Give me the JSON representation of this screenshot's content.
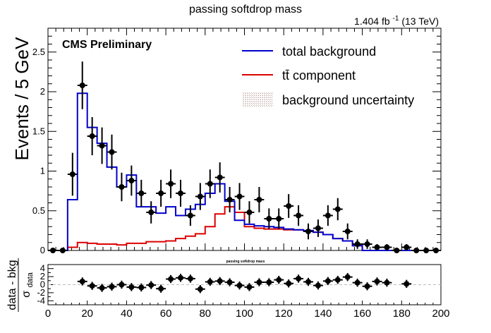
{
  "chart_data": [
    {
      "type": "line",
      "title": "passing softdrop mass",
      "lumi_label": "1.404 fb",
      "lumi_superscript": "-1",
      "lumi_energy": "(13 TeV)",
      "experiment_label": "CMS Preliminary",
      "xlabel": "",
      "ylabel": "Events / 5 GeV",
      "xlim": [
        0,
        200
      ],
      "ylim": [
        0,
        2.8
      ],
      "yticks": [
        "0",
        "0.5",
        "1",
        "1.5",
        "2",
        "2.5"
      ],
      "legend_position": "top-right",
      "legend": [
        {
          "label": "total background",
          "color": "#0000cc",
          "kind": "line"
        },
        {
          "label": "tt̄ component",
          "color": "#dd0000",
          "kind": "line"
        },
        {
          "label": "background uncertainty",
          "color": "#b09890",
          "kind": "hatch"
        }
      ],
      "bin_edges": [
        0,
        5,
        10,
        15,
        20,
        25,
        30,
        35,
        40,
        45,
        50,
        55,
        60,
        65,
        70,
        75,
        80,
        85,
        90,
        95,
        100,
        105,
        110,
        115,
        120,
        125,
        130,
        135,
        140,
        145,
        150,
        155,
        160,
        165,
        170,
        175,
        180,
        185,
        190,
        195,
        200
      ],
      "series": [
        {
          "name": "total background",
          "color": "#0000cc",
          "values": [
            0.0,
            0.0,
            0.64,
            1.98,
            1.55,
            1.35,
            1.05,
            0.8,
            0.95,
            0.55,
            0.55,
            0.47,
            0.55,
            0.44,
            0.52,
            0.58,
            0.72,
            0.84,
            0.62,
            0.38,
            0.33,
            0.31,
            0.3,
            0.29,
            0.27,
            0.26,
            0.25,
            0.23,
            0.2,
            0.15,
            0.12,
            0.06,
            0.0,
            0.0,
            0.0,
            0.0,
            0.0,
            0.0,
            0.0,
            0.0
          ]
        },
        {
          "name": "tt̄ component",
          "color": "#dd0000",
          "values": [
            0.0,
            0.0,
            0.04,
            0.1,
            0.09,
            0.08,
            0.08,
            0.07,
            0.09,
            0.09,
            0.11,
            0.11,
            0.12,
            0.15,
            0.18,
            0.21,
            0.3,
            0.46,
            0.55,
            0.48,
            0.3,
            0.28,
            0.27,
            0.27,
            0.26,
            0.26,
            0.25,
            0.23,
            0.2,
            0.15,
            0.12,
            0.06,
            0.0,
            0.0,
            0.0,
            0.0,
            0.0,
            0.0,
            0.0,
            0.0
          ]
        }
      ],
      "data_points": {
        "x": [
          2.5,
          7.5,
          12.5,
          17.5,
          22.5,
          27.5,
          32.5,
          37.5,
          42.5,
          47.5,
          52.5,
          57.5,
          62.5,
          67.5,
          72.5,
          77.5,
          82.5,
          87.5,
          92.5,
          97.5,
          102.5,
          107.5,
          112.5,
          117.5,
          122.5,
          127.5,
          132.5,
          137.5,
          142.5,
          147.5,
          152.5,
          157.5,
          162.5,
          167.5,
          172.5,
          177.5,
          182.5,
          187.5,
          192.5,
          197.5
        ],
        "y": [
          0.0,
          0.0,
          0.96,
          2.08,
          1.44,
          1.32,
          1.24,
          0.8,
          0.88,
          0.72,
          0.48,
          0.72,
          0.84,
          0.72,
          0.44,
          0.68,
          0.84,
          0.92,
          0.64,
          0.68,
          0.48,
          0.64,
          0.4,
          0.4,
          0.56,
          0.44,
          0.24,
          0.28,
          0.44,
          0.52,
          0.24,
          0.08,
          0.08,
          0.04,
          0.04,
          0.0,
          0.04,
          0.0,
          0.0,
          0.0
        ],
        "yerr": [
          0.0,
          0.0,
          0.27,
          0.3,
          0.24,
          0.23,
          0.22,
          0.18,
          0.19,
          0.17,
          0.14,
          0.17,
          0.18,
          0.17,
          0.13,
          0.17,
          0.18,
          0.19,
          0.16,
          0.17,
          0.14,
          0.16,
          0.13,
          0.13,
          0.15,
          0.13,
          0.1,
          0.11,
          0.13,
          0.14,
          0.1,
          0.06,
          0.06,
          0.04,
          0.04,
          0.0,
          0.04,
          0.0,
          0.0,
          0.0
        ]
      }
    },
    {
      "type": "scatter",
      "title": "passing softdrop mass",
      "xlabel": "",
      "ylabel": "data - bkg",
      "ylabel_denominator": "σ",
      "ylabel_denominator_sub": "data",
      "xlim": [
        0,
        200
      ],
      "ylim": [
        -5,
        5
      ],
      "xticks": [
        "0",
        "20",
        "40",
        "60",
        "80",
        "100",
        "120",
        "140",
        "160",
        "180",
        "200"
      ],
      "yticks": [
        "-4",
        "-2",
        "0",
        "2",
        "4"
      ],
      "x": [
        17.5,
        22.5,
        27.5,
        32.5,
        37.5,
        42.5,
        47.5,
        52.5,
        57.5,
        62.5,
        67.5,
        72.5,
        77.5,
        82.5,
        87.5,
        92.5,
        97.5,
        102.5,
        107.5,
        112.5,
        117.5,
        122.5,
        127.5,
        132.5,
        137.5,
        142.5,
        147.5,
        152.5,
        157.5,
        162.5,
        167.5,
        172.5,
        182.5
      ],
      "y": [
        0.8,
        -0.3,
        -0.8,
        -0.5,
        0.0,
        -0.6,
        -0.7,
        -0.1,
        -1.0,
        1.4,
        1.7,
        1.5,
        -1.1,
        0.7,
        0.9,
        0.6,
        -0.2,
        -0.6,
        0.6,
        0.6,
        1.2,
        0.3,
        1.5,
        0.7,
        -0.2,
        0.9,
        1.2,
        1.9,
        0.5,
        -0.4,
        0.8,
        0.5,
        0.2
      ]
    }
  ]
}
